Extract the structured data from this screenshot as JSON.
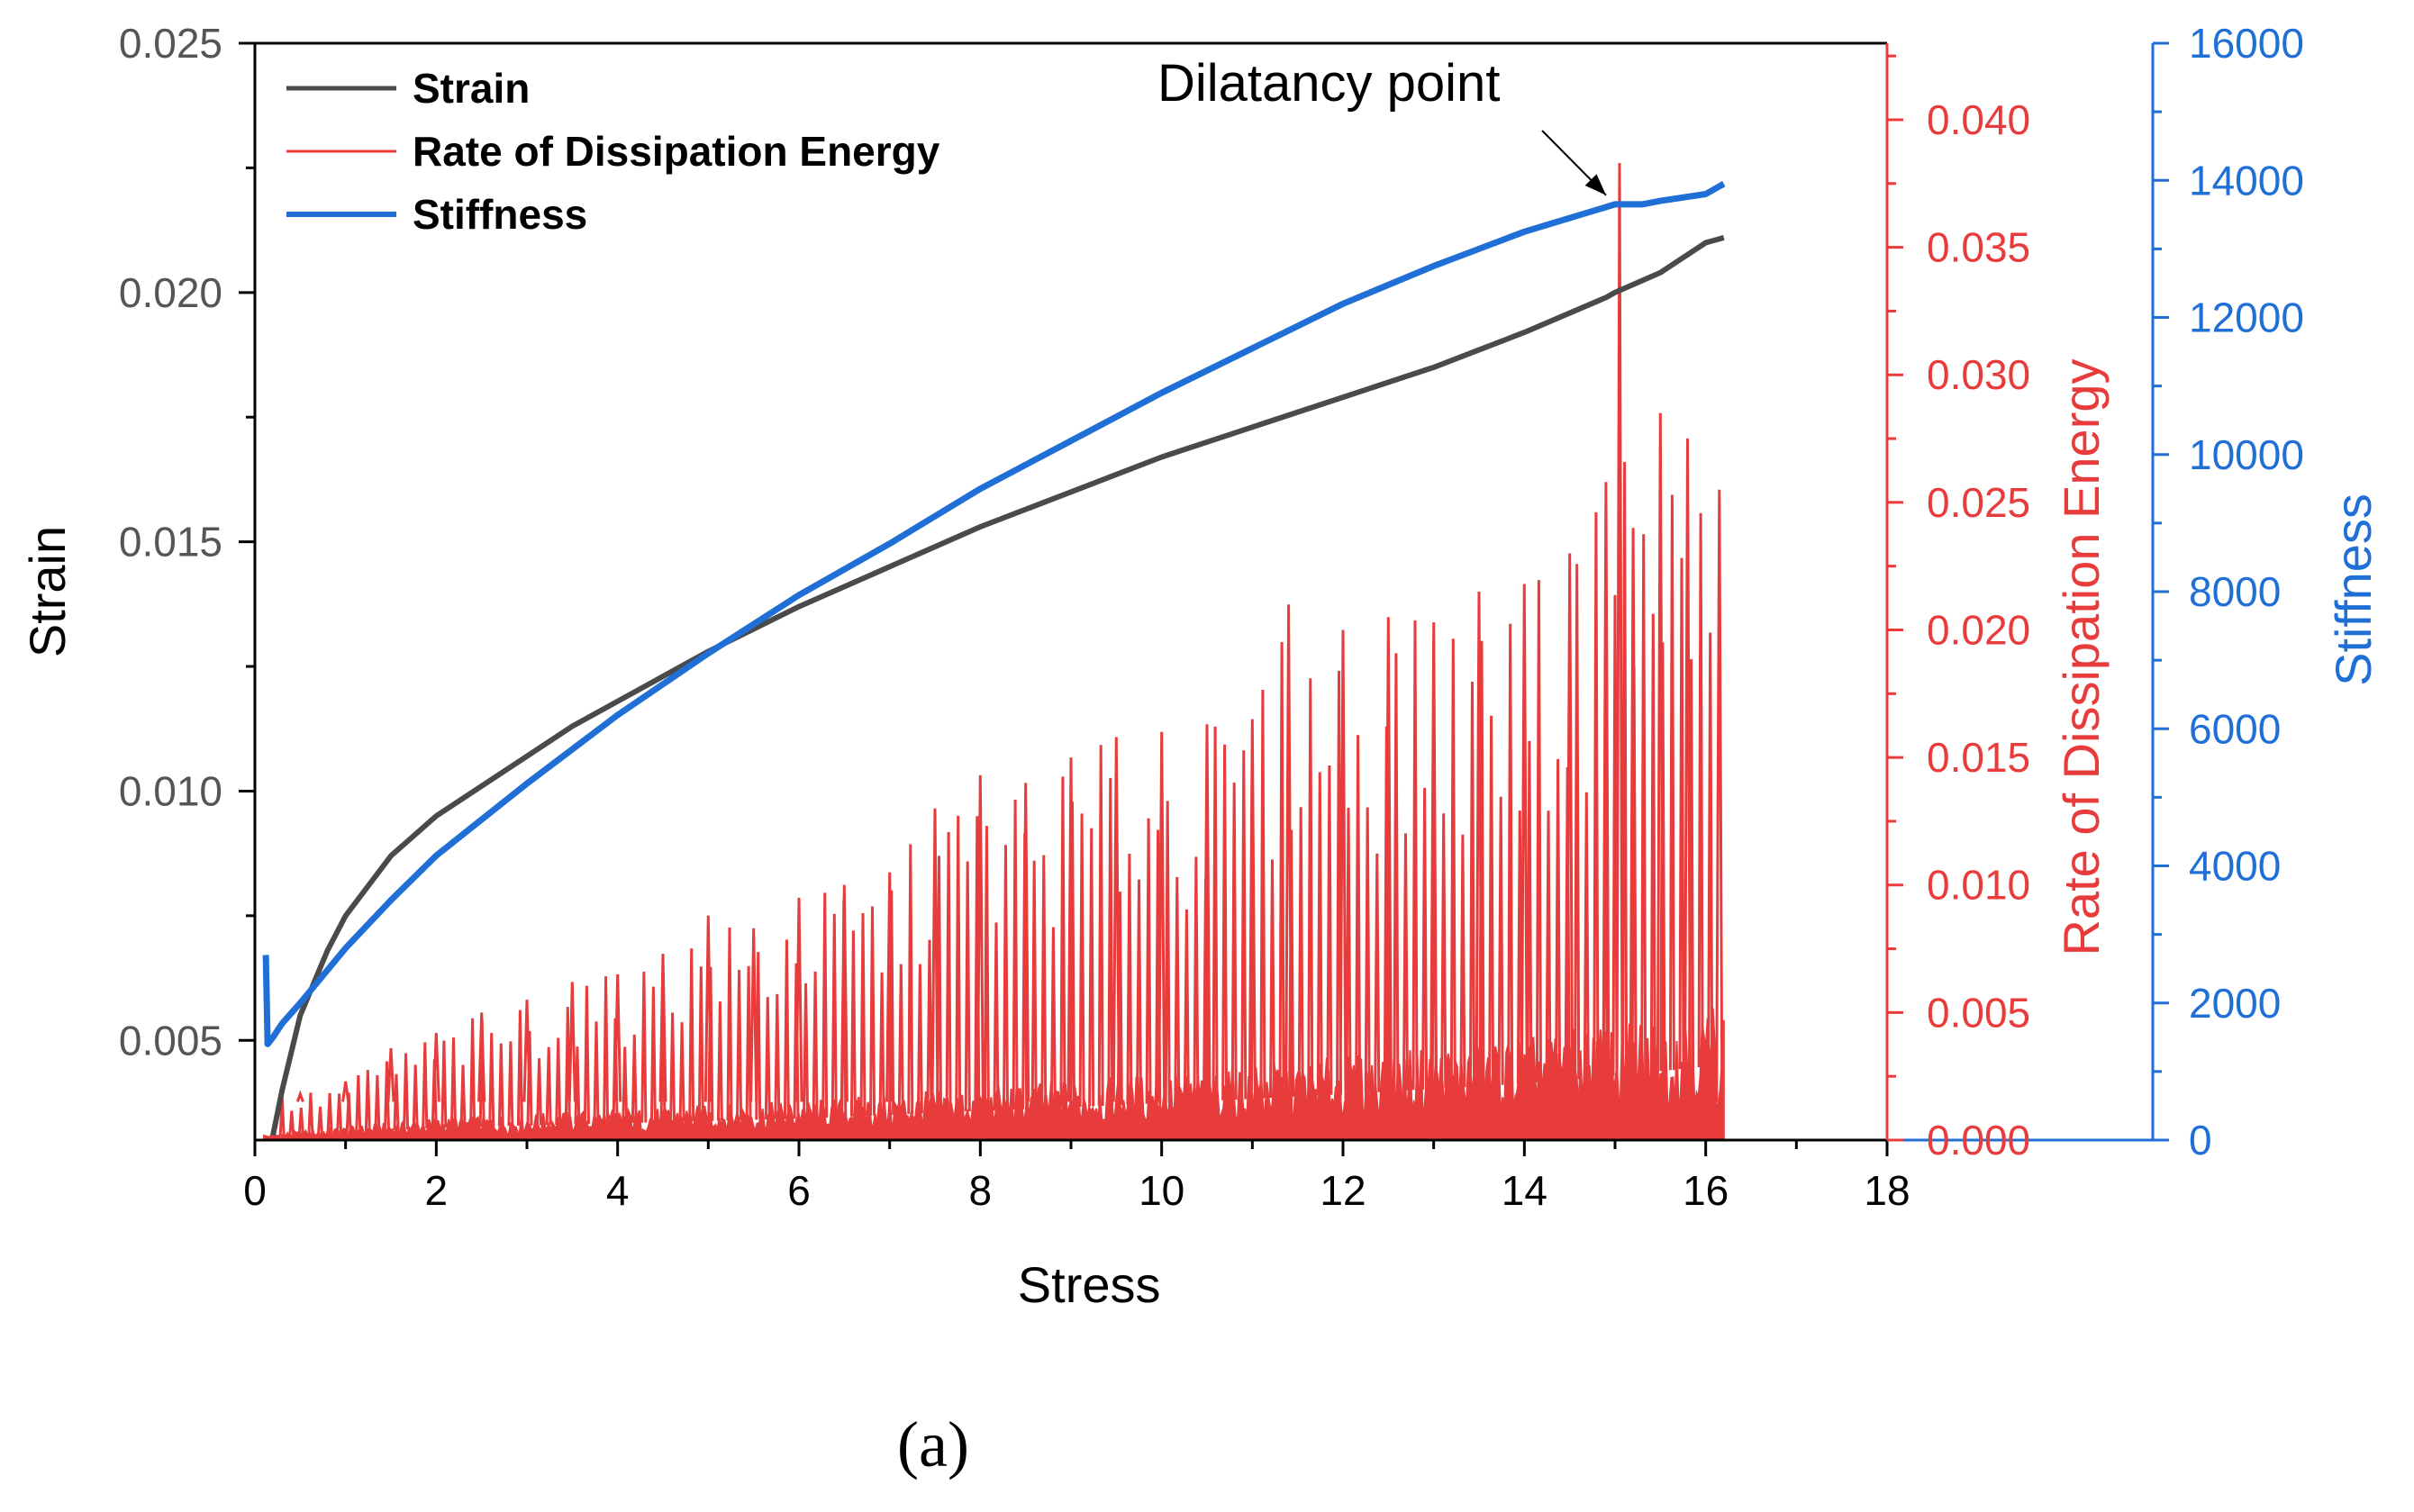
{
  "chart_data": {
    "type": "line",
    "xlabel": "Stress",
    "xlim": [
      0,
      18
    ],
    "xticks": [
      0,
      2,
      4,
      6,
      8,
      10,
      12,
      14,
      16,
      18
    ],
    "annotation": "Dilatancy point",
    "annotation_target": {
      "x": 15.0,
      "series": "Stiffness",
      "y": 13600
    },
    "panel_label": "(a)",
    "colors": {
      "strain": "#4a4a4a",
      "dissipation": "#e83c3c",
      "stiffness": "#1f6fd6",
      "axes": "#000000"
    },
    "axes": {
      "left": {
        "label": "Strain",
        "lim": [
          0.003,
          0.025
        ],
        "ticks": [
          0.005,
          0.01,
          0.015,
          0.02,
          0.025
        ],
        "tick_labels": [
          "0.005",
          "0.010",
          "0.015",
          "0.020",
          "0.025"
        ]
      },
      "right1": {
        "label": "Rate of Dissipation Energy",
        "lim": [
          0.0,
          0.043
        ],
        "ticks": [
          0.0,
          0.005,
          0.01,
          0.015,
          0.02,
          0.025,
          0.03,
          0.035,
          0.04
        ],
        "tick_labels": [
          "0.000",
          "0.005",
          "0.010",
          "0.015",
          "0.020",
          "0.025",
          "0.030",
          "0.035",
          "0.040"
        ]
      },
      "right2": {
        "label": "Stiffness",
        "lim": [
          0,
          16000
        ],
        "ticks": [
          0,
          2000,
          4000,
          6000,
          8000,
          10000,
          12000,
          14000,
          16000
        ],
        "tick_labels": [
          "0",
          "2000",
          "4000",
          "6000",
          "8000",
          "10000",
          "12000",
          "14000",
          "16000"
        ]
      }
    },
    "legend": {
      "position": "top-left",
      "entries": [
        "Strain",
        "Rate of Dissipation Energy",
        "Stiffness"
      ]
    },
    "series": [
      {
        "name": "Strain",
        "axis": "left",
        "x": [
          0.2,
          0.3,
          0.5,
          0.8,
          1.0,
          1.5,
          2.0,
          2.5,
          3.0,
          3.5,
          4.0,
          5.0,
          6.0,
          7.0,
          8.0,
          9.0,
          10.0,
          11.0,
          12.0,
          13.0,
          14.0,
          14.9,
          15.0,
          15.5,
          16.0,
          16.2
        ],
        "y": [
          0.0031,
          0.004,
          0.0055,
          0.0068,
          0.0075,
          0.0087,
          0.0095,
          0.0101,
          0.0107,
          0.0113,
          0.0118,
          0.0128,
          0.0137,
          0.0145,
          0.0153,
          0.016,
          0.0167,
          0.0173,
          0.0179,
          0.0185,
          0.0192,
          0.0199,
          0.02,
          0.0204,
          0.021,
          0.0211
        ]
      },
      {
        "name": "Stiffness",
        "axis": "right2",
        "x": [
          0.12,
          0.14,
          0.2,
          0.3,
          0.5,
          1.0,
          1.5,
          2.0,
          3.0,
          4.0,
          5.0,
          6.0,
          7.0,
          8.0,
          9.0,
          10.0,
          11.0,
          12.0,
          13.0,
          14.0,
          15.0,
          15.3,
          15.5,
          16.0,
          16.2
        ],
        "y": [
          2700,
          1400,
          1500,
          1700,
          2000,
          2800,
          3500,
          4150,
          5200,
          6200,
          7100,
          7950,
          8700,
          9500,
          10200,
          10900,
          11550,
          12200,
          12750,
          13250,
          13650,
          13650,
          13700,
          13800,
          13950
        ]
      },
      {
        "name": "Rate of Dissipation Energy",
        "axis": "right1",
        "style": "spiky",
        "peaks_x": [
          0.5,
          1.0,
          1.5,
          2.0,
          2.5,
          3.0,
          3.5,
          4.0,
          4.5,
          5.0,
          5.5,
          6.0,
          6.5,
          7.0,
          7.5,
          8.0,
          8.5,
          9.0,
          9.5,
          10.0,
          10.5,
          11.0,
          11.4,
          12.0,
          12.5,
          13.0,
          13.5,
          14.0,
          14.5,
          14.9,
          15.05,
          15.2,
          15.5,
          15.8,
          16.15
        ],
        "peaks_y": [
          0.0018,
          0.0023,
          0.0036,
          0.0042,
          0.005,
          0.0055,
          0.0062,
          0.0065,
          0.0073,
          0.0088,
          0.0083,
          0.0095,
          0.01,
          0.0105,
          0.013,
          0.0143,
          0.014,
          0.015,
          0.0158,
          0.016,
          0.0163,
          0.0165,
          0.021,
          0.02,
          0.0205,
          0.0203,
          0.0215,
          0.0218,
          0.023,
          0.0258,
          0.0383,
          0.024,
          0.0285,
          0.0275,
          0.0255
        ],
        "baseline_x": [
          0.1,
          2.0,
          4.0,
          6.0,
          8.0,
          10.0,
          12.0,
          14.0,
          15.0,
          16.0,
          16.2
        ],
        "baseline_y": [
          0.0002,
          0.0008,
          0.0011,
          0.0014,
          0.0019,
          0.0024,
          0.003,
          0.0037,
          0.0042,
          0.0048,
          0.005
        ]
      }
    ]
  }
}
